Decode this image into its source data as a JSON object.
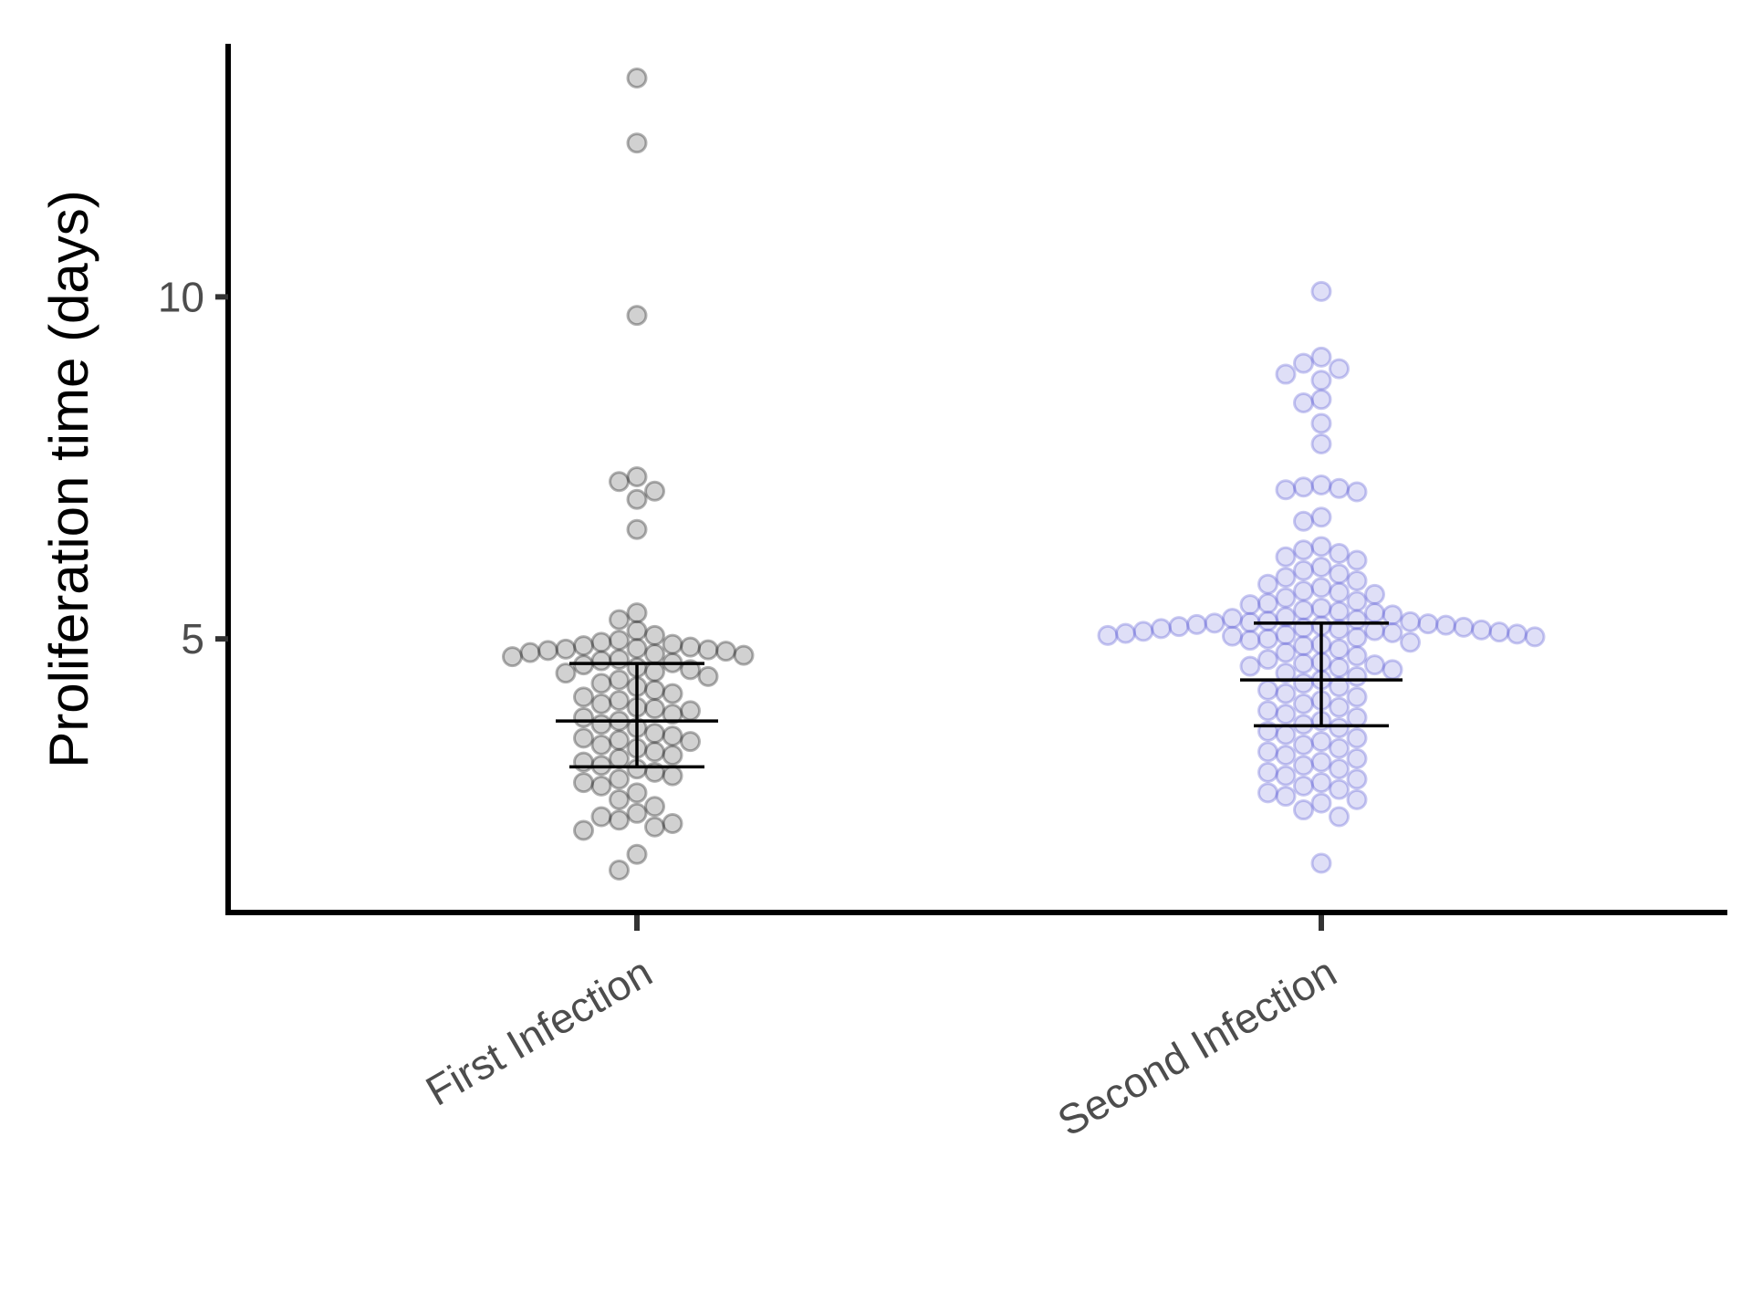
{
  "chart_data": {
    "type": "scatter",
    "subtype": "beeswarm with median and interquartile range",
    "title": "",
    "xlabel": "",
    "ylabel": "Proliferation time (days)",
    "ylim": [
      1.0,
      13.7
    ],
    "yticks": [
      5,
      10
    ],
    "grid": false,
    "legend": "none",
    "categories": [
      "First Infection",
      "Second Infection"
    ],
    "series": [
      {
        "category": "First Infection",
        "color": "#000000",
        "median": 3.8,
        "q1": 3.13,
        "q3": 4.64,
        "values": [
          13.2,
          12.25,
          9.73,
          7.37,
          7.3,
          7.16,
          7.04,
          6.6,
          5.38,
          5.28,
          5.12,
          5.05,
          4.98,
          4.95,
          4.92,
          4.9,
          4.88,
          4.86,
          4.85,
          4.84,
          4.83,
          4.82,
          4.8,
          4.78,
          4.76,
          4.74,
          4.7,
          4.68,
          4.65,
          4.62,
          4.58,
          4.55,
          4.52,
          4.5,
          4.45,
          4.4,
          4.35,
          4.3,
          4.25,
          4.2,
          4.15,
          4.1,
          4.05,
          4.0,
          3.98,
          3.95,
          3.9,
          3.85,
          3.8,
          3.75,
          3.7,
          3.62,
          3.58,
          3.55,
          3.52,
          3.5,
          3.45,
          3.4,
          3.35,
          3.3,
          3.25,
          3.2,
          3.15,
          3.1,
          3.05,
          3.0,
          2.95,
          2.9,
          2.85,
          2.75,
          2.65,
          2.55,
          2.45,
          2.4,
          2.35,
          2.3,
          2.25,
          2.2,
          1.85,
          1.62
        ]
      },
      {
        "category": "Second Infection",
        "color": "#4b4bd0",
        "median": 4.4,
        "q1": 3.73,
        "q3": 5.23,
        "values": [
          10.08,
          9.12,
          9.03,
          8.95,
          8.87,
          8.78,
          8.5,
          8.45,
          8.15,
          7.85,
          7.25,
          7.22,
          7.2,
          7.18,
          7.15,
          6.78,
          6.72,
          6.35,
          6.3,
          6.25,
          6.2,
          6.15,
          6.05,
          6.0,
          5.95,
          5.9,
          5.85,
          5.8,
          5.75,
          5.7,
          5.68,
          5.65,
          5.6,
          5.55,
          5.52,
          5.5,
          5.45,
          5.42,
          5.4,
          5.38,
          5.35,
          5.32,
          5.3,
          5.28,
          5.26,
          5.25,
          5.24,
          5.23,
          5.22,
          5.21,
          5.2,
          5.19,
          5.18,
          5.17,
          5.16,
          5.15,
          5.14,
          5.13,
          5.12,
          5.11,
          5.1,
          5.09,
          5.08,
          5.07,
          5.06,
          5.05,
          5.04,
          5.03,
          5.02,
          5.0,
          4.98,
          4.95,
          4.92,
          4.9,
          4.85,
          4.8,
          4.75,
          4.7,
          4.66,
          4.64,
          4.62,
          4.6,
          4.58,
          4.55,
          4.5,
          4.45,
          4.4,
          4.35,
          4.3,
          4.25,
          4.2,
          4.15,
          4.1,
          4.05,
          4.0,
          3.95,
          3.9,
          3.85,
          3.8,
          3.75,
          3.7,
          3.65,
          3.6,
          3.55,
          3.5,
          3.45,
          3.4,
          3.35,
          3.3,
          3.25,
          3.2,
          3.15,
          3.1,
          3.05,
          3.0,
          2.95,
          2.9,
          2.85,
          2.8,
          2.75,
          2.7,
          2.65,
          2.6,
          2.5,
          2.4,
          1.72
        ]
      }
    ]
  }
}
